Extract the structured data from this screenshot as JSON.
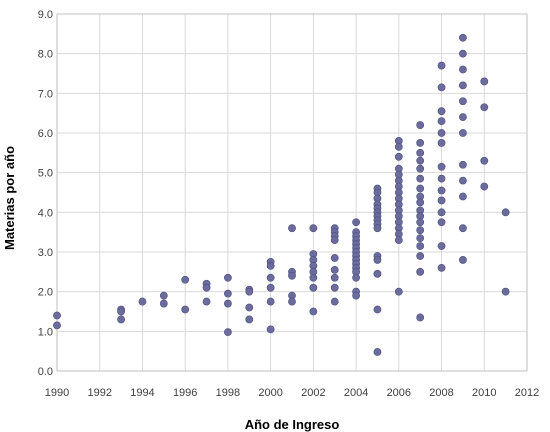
{
  "chart_data": {
    "type": "scatter",
    "title": "",
    "xlabel": "Año de Ingreso",
    "ylabel": "Materias por año",
    "xlim": [
      1990,
      2012
    ],
    "ylim": [
      0,
      9
    ],
    "x_ticks": [
      "1990",
      "1992",
      "1994",
      "1996",
      "1998",
      "2000",
      "2002",
      "2004",
      "2006",
      "2008",
      "2010",
      "2012"
    ],
    "y_ticks": [
      "0.0",
      "1.0",
      "2.0",
      "3.0",
      "4.0",
      "5.0",
      "6.0",
      "7.0",
      "8.0",
      "9.0"
    ],
    "grid": true,
    "legend": "none",
    "marker_color": "#6b6b9c",
    "series": [
      {
        "points": [
          [
            1990,
            1.4
          ],
          [
            1990,
            1.15
          ],
          [
            1993,
            1.55
          ],
          [
            1993,
            1.5
          ],
          [
            1993,
            1.3
          ],
          [
            1994,
            1.75
          ],
          [
            1995,
            1.9
          ],
          [
            1995,
            1.7
          ],
          [
            1996,
            2.3
          ],
          [
            1996,
            1.55
          ],
          [
            1997,
            2.2
          ],
          [
            1997,
            2.1
          ],
          [
            1997,
            1.75
          ],
          [
            1998,
            2.35
          ],
          [
            1998,
            1.95
          ],
          [
            1998,
            1.7
          ],
          [
            1998,
            0.98
          ],
          [
            1999,
            2.05
          ],
          [
            1999,
            2.0
          ],
          [
            1999,
            1.6
          ],
          [
            1999,
            1.3
          ],
          [
            2000,
            2.75
          ],
          [
            2000,
            2.65
          ],
          [
            2000,
            2.35
          ],
          [
            2000,
            2.1
          ],
          [
            2000,
            1.75
          ],
          [
            2000,
            1.05
          ],
          [
            2001,
            3.6
          ],
          [
            2001,
            2.5
          ],
          [
            2001,
            2.4
          ],
          [
            2001,
            1.9
          ],
          [
            2001,
            1.75
          ],
          [
            2002,
            3.6
          ],
          [
            2002,
            2.95
          ],
          [
            2002,
            2.8
          ],
          [
            2002,
            2.65
          ],
          [
            2002,
            2.5
          ],
          [
            2002,
            2.35
          ],
          [
            2002,
            2.1
          ],
          [
            2002,
            1.5
          ],
          [
            2003,
            3.6
          ],
          [
            2003,
            3.5
          ],
          [
            2003,
            3.4
          ],
          [
            2003,
            3.3
          ],
          [
            2003,
            2.85
          ],
          [
            2003,
            2.55
          ],
          [
            2003,
            2.35
          ],
          [
            2003,
            2.1
          ],
          [
            2003,
            1.75
          ],
          [
            2004,
            3.75
          ],
          [
            2004,
            3.5
          ],
          [
            2004,
            3.4
          ],
          [
            2004,
            3.3
          ],
          [
            2004,
            3.2
          ],
          [
            2004,
            3.1
          ],
          [
            2004,
            3.0
          ],
          [
            2004,
            2.9
          ],
          [
            2004,
            2.8
          ],
          [
            2004,
            2.7
          ],
          [
            2004,
            2.6
          ],
          [
            2004,
            2.5
          ],
          [
            2004,
            2.35
          ],
          [
            2004,
            2.0
          ],
          [
            2004,
            1.9
          ],
          [
            2005,
            4.6
          ],
          [
            2005,
            4.5
          ],
          [
            2005,
            4.35
          ],
          [
            2005,
            4.2
          ],
          [
            2005,
            4.1
          ],
          [
            2005,
            4.0
          ],
          [
            2005,
            3.9
          ],
          [
            2005,
            3.8
          ],
          [
            2005,
            3.7
          ],
          [
            2005,
            3.6
          ],
          [
            2005,
            2.9
          ],
          [
            2005,
            2.8
          ],
          [
            2005,
            2.45
          ],
          [
            2005,
            1.55
          ],
          [
            2005,
            0.48
          ],
          [
            2006,
            5.8
          ],
          [
            2006,
            5.65
          ],
          [
            2006,
            5.4
          ],
          [
            2006,
            5.1
          ],
          [
            2006,
            4.95
          ],
          [
            2006,
            4.8
          ],
          [
            2006,
            4.65
          ],
          [
            2006,
            4.5
          ],
          [
            2006,
            4.35
          ],
          [
            2006,
            4.2
          ],
          [
            2006,
            4.05
          ],
          [
            2006,
            3.9
          ],
          [
            2006,
            3.75
          ],
          [
            2006,
            3.6
          ],
          [
            2006,
            3.45
          ],
          [
            2006,
            3.3
          ],
          [
            2006,
            2.0
          ],
          [
            2007,
            6.2
          ],
          [
            2007,
            5.75
          ],
          [
            2007,
            5.5
          ],
          [
            2007,
            5.3
          ],
          [
            2007,
            5.1
          ],
          [
            2007,
            4.85
          ],
          [
            2007,
            4.6
          ],
          [
            2007,
            4.4
          ],
          [
            2007,
            4.25
          ],
          [
            2007,
            4.05
          ],
          [
            2007,
            3.9
          ],
          [
            2007,
            3.75
          ],
          [
            2007,
            3.55
          ],
          [
            2007,
            3.35
          ],
          [
            2007,
            3.15
          ],
          [
            2007,
            2.9
          ],
          [
            2007,
            2.5
          ],
          [
            2007,
            1.35
          ],
          [
            2008,
            7.7
          ],
          [
            2008,
            7.15
          ],
          [
            2008,
            6.55
          ],
          [
            2008,
            6.3
          ],
          [
            2008,
            6.0
          ],
          [
            2008,
            5.75
          ],
          [
            2008,
            5.15
          ],
          [
            2008,
            4.85
          ],
          [
            2008,
            4.55
          ],
          [
            2008,
            4.3
          ],
          [
            2008,
            4.0
          ],
          [
            2008,
            3.75
          ],
          [
            2008,
            3.15
          ],
          [
            2008,
            2.6
          ],
          [
            2009,
            8.4
          ],
          [
            2009,
            8.0
          ],
          [
            2009,
            7.6
          ],
          [
            2009,
            7.2
          ],
          [
            2009,
            6.8
          ],
          [
            2009,
            6.4
          ],
          [
            2009,
            6.0
          ],
          [
            2009,
            5.2
          ],
          [
            2009,
            4.8
          ],
          [
            2009,
            4.4
          ],
          [
            2009,
            3.6
          ],
          [
            2009,
            2.8
          ],
          [
            2010,
            7.3
          ],
          [
            2010,
            6.65
          ],
          [
            2010,
            5.3
          ],
          [
            2010,
            4.65
          ],
          [
            2011,
            4.0
          ],
          [
            2011,
            2.0
          ]
        ]
      }
    ]
  }
}
